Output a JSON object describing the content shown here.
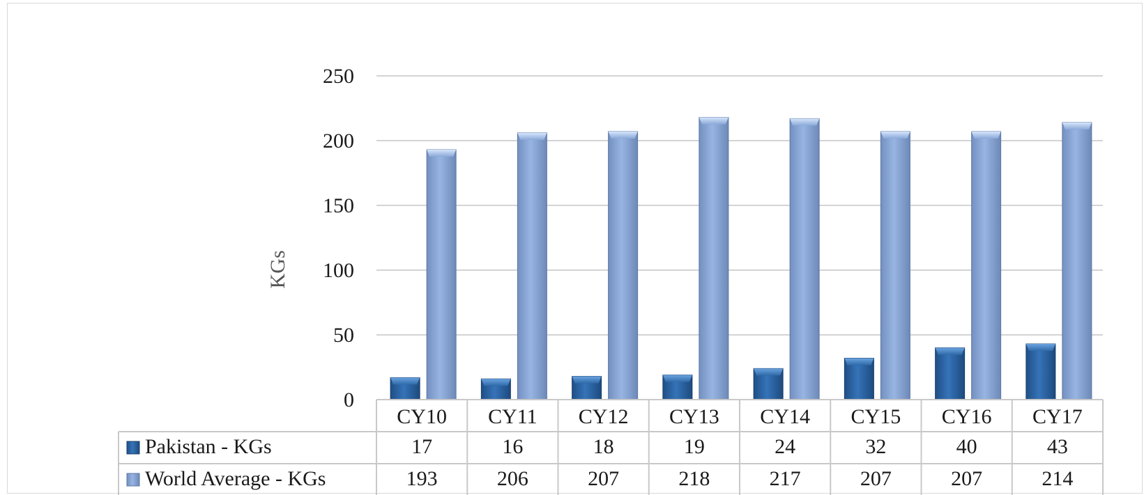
{
  "chart_data": {
    "type": "bar",
    "title": "",
    "xlabel": "",
    "ylabel": "KGs",
    "ylim": [
      0,
      250
    ],
    "yticks": [
      0,
      50,
      100,
      150,
      200,
      250
    ],
    "grid": true,
    "legend": "data-table-left",
    "categories": [
      "CY10",
      "CY11",
      "CY12",
      "CY13",
      "CY14",
      "CY15",
      "CY16",
      "CY17"
    ],
    "series": [
      {
        "name": "Pakistan - KGs",
        "values": [
          17,
          16,
          18,
          19,
          24,
          32,
          40,
          43
        ],
        "color": "#2f6aa8"
      },
      {
        "name": "World Average - KGs",
        "values": [
          193,
          206,
          207,
          218,
          217,
          207,
          207,
          214
        ],
        "color": "#8aa8d8"
      }
    ]
  }
}
